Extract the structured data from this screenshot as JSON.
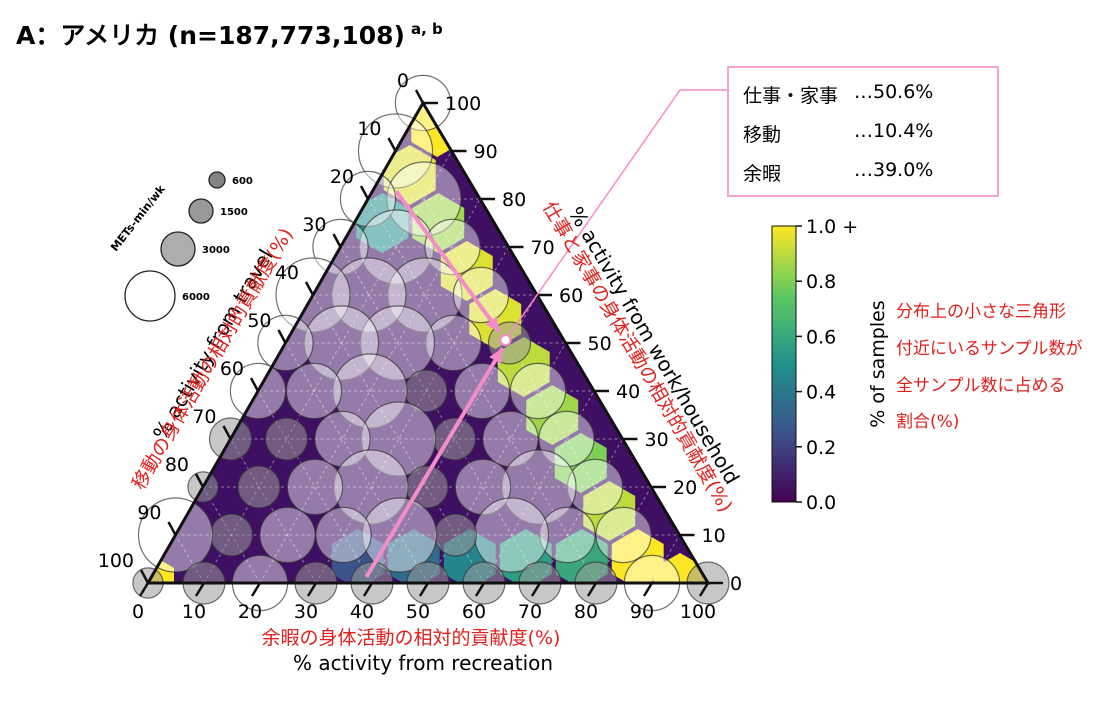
{
  "title": "A：アメリカ (n=187,773,108)",
  "title_superscript": "a, b",
  "callout": {
    "rows": [
      {
        "label": "仕事・家事",
        "value": "…50.6%"
      },
      {
        "label": "移動",
        "value": "…10.4%"
      },
      {
        "label": "余暇",
        "value": "…39.0%"
      }
    ]
  },
  "colorbar": {
    "label": "% of samples",
    "ticks": [
      "0.0",
      "0.2",
      "0.4",
      "0.6",
      "0.8",
      "1.0 +"
    ],
    "annotation_lines": [
      "分布上の小さな三角形",
      "付近にいるサンプル数が",
      "全サンプル数に占める",
      "割合(%)"
    ]
  },
  "size_legend": {
    "title": "METs-min/wk",
    "entries": [
      "600",
      "1500",
      "3000",
      "6000"
    ]
  },
  "colors": {
    "pink": "#f48cc8",
    "red_text": "#e0201c",
    "callout_border": "#f2a3cf"
  },
  "chart_data": {
    "type": "ternary",
    "axes": {
      "bottom": {
        "label": "% activity from recreation",
        "label_ja": "余暇の身体活動の相対的貢献度(%)",
        "ticks": [
          "0",
          "10",
          "20",
          "30",
          "40",
          "50",
          "60",
          "70",
          "80",
          "90",
          "100"
        ]
      },
      "right": {
        "label": "% activity from work/household",
        "label_ja": "仕事と家事の身体活動の相対的貢献度(%)",
        "ticks": [
          "0",
          "10",
          "20",
          "30",
          "40",
          "50",
          "60",
          "70",
          "80",
          "90",
          "100"
        ]
      },
      "left": {
        "label": "% activity from travel",
        "label_ja": "移動の身体活動の相対的貢献度(%)",
        "ticks": [
          "0",
          "10",
          "20",
          "30",
          "40",
          "50",
          "60",
          "70",
          "80",
          "90",
          "100"
        ]
      }
    },
    "mean_point": {
      "work_household": 50.6,
      "travel": 10.4,
      "recreation": 39.0
    },
    "colorscale": {
      "min": 0.0,
      "max": 1.0,
      "colors": [
        "#440154",
        "#3b528b",
        "#21918c",
        "#5ec962",
        "#fde725"
      ]
    },
    "cells": [
      {
        "rec": 5,
        "work": 95,
        "travel": 0,
        "value": 1.0
      },
      {
        "rec": 5,
        "work": 85,
        "travel": 10,
        "value": 0.95
      },
      {
        "rec": 15,
        "work": 75,
        "travel": 10,
        "value": 0.85
      },
      {
        "rec": 5,
        "work": 75,
        "travel": 20,
        "value": 0.5
      },
      {
        "rec": 25,
        "work": 65,
        "travel": 10,
        "value": 0.95
      },
      {
        "rec": 35,
        "work": 55,
        "travel": 10,
        "value": 0.95
      },
      {
        "rec": 45,
        "work": 45,
        "travel": 10,
        "value": 0.9
      },
      {
        "rec": 55,
        "work": 35,
        "travel": 10,
        "value": 0.85
      },
      {
        "rec": 65,
        "work": 25,
        "travel": 10,
        "value": 0.8
      },
      {
        "rec": 75,
        "work": 15,
        "travel": 10,
        "value": 0.9
      },
      {
        "rec": 85,
        "work": 5,
        "travel": 10,
        "value": 1.0
      },
      {
        "rec": 95,
        "work": 0,
        "travel": 5,
        "value": 1.0
      },
      {
        "rec": 0,
        "work": 0,
        "travel": 100,
        "value": 1.0
      },
      {
        "rec": 45,
        "work": 5,
        "travel": 50,
        "value": 0.35
      },
      {
        "rec": 55,
        "work": 5,
        "travel": 40,
        "value": 0.45
      },
      {
        "rec": 65,
        "work": 5,
        "travel": 30,
        "value": 0.55
      },
      {
        "rec": 75,
        "work": 5,
        "travel": 20,
        "value": 0.6
      },
      {
        "rec": 35,
        "work": 5,
        "travel": 60,
        "value": 0.25
      }
    ],
    "bubbles": [
      {
        "x": 0,
        "y": 0,
        "r": 0,
        "rec": 0,
        "work": 100,
        "travel": 0,
        "size": 3000
      },
      {
        "rec": 0,
        "work": 90,
        "travel": 10,
        "size": 6000
      },
      {
        "rec": 10,
        "work": 80,
        "travel": 10,
        "size": 6000
      },
      {
        "rec": 0,
        "work": 80,
        "travel": 20,
        "size": 3000
      },
      {
        "rec": 10,
        "work": 70,
        "travel": 20,
        "size": 6000
      },
      {
        "rec": 20,
        "work": 70,
        "travel": 10,
        "size": 3000
      },
      {
        "rec": 0,
        "work": 70,
        "travel": 30,
        "size": 3000
      },
      {
        "rec": 20,
        "work": 60,
        "travel": 20,
        "size": 6000
      },
      {
        "rec": 30,
        "work": 60,
        "travel": 10,
        "size": 3000
      },
      {
        "rec": 10,
        "work": 60,
        "travel": 30,
        "size": 6000
      },
      {
        "rec": 0,
        "work": 60,
        "travel": 40,
        "size": 6000
      },
      {
        "rec": 40,
        "work": 50,
        "travel": 10,
        "size": 1500
      },
      {
        "rec": 30,
        "work": 50,
        "travel": 20,
        "size": 3000
      },
      {
        "rec": 20,
        "work": 50,
        "travel": 30,
        "size": 6000
      },
      {
        "rec": 10,
        "work": 50,
        "travel": 40,
        "size": 6000
      },
      {
        "rec": 0,
        "work": 50,
        "travel": 50,
        "size": 3000
      },
      {
        "rec": 50,
        "work": 40,
        "travel": 10,
        "size": 3000
      },
      {
        "rec": 40,
        "work": 40,
        "travel": 20,
        "size": 3000
      },
      {
        "rec": 30,
        "work": 40,
        "travel": 30,
        "size": 1500
      },
      {
        "rec": 20,
        "work": 40,
        "travel": 40,
        "size": 6000
      },
      {
        "rec": 10,
        "work": 40,
        "travel": 50,
        "size": 3000
      },
      {
        "rec": 0,
        "work": 40,
        "travel": 60,
        "size": 3000
      },
      {
        "rec": 60,
        "work": 30,
        "travel": 10,
        "size": 3000
      },
      {
        "rec": 50,
        "work": 30,
        "travel": 20,
        "size": 3000
      },
      {
        "rec": 40,
        "work": 30,
        "travel": 30,
        "size": 1500
      },
      {
        "rec": 30,
        "work": 30,
        "travel": 40,
        "size": 6000
      },
      {
        "rec": 20,
        "work": 30,
        "travel": 50,
        "size": 3000
      },
      {
        "rec": 10,
        "work": 30,
        "travel": 60,
        "size": 1500
      },
      {
        "rec": 0,
        "work": 30,
        "travel": 70,
        "size": 1500
      },
      {
        "rec": 70,
        "work": 20,
        "travel": 10,
        "size": 3000
      },
      {
        "rec": 60,
        "work": 20,
        "travel": 20,
        "size": 6000
      },
      {
        "rec": 50,
        "work": 20,
        "travel": 30,
        "size": 3000
      },
      {
        "rec": 40,
        "work": 20,
        "travel": 40,
        "size": 1500
      },
      {
        "rec": 30,
        "work": 20,
        "travel": 50,
        "size": 6000
      },
      {
        "rec": 20,
        "work": 20,
        "travel": 60,
        "size": 3000
      },
      {
        "rec": 10,
        "work": 20,
        "travel": 70,
        "size": 1500
      },
      {
        "rec": 0,
        "work": 20,
        "travel": 80,
        "size": 600
      },
      {
        "rec": 80,
        "work": 10,
        "travel": 10,
        "size": 3000
      },
      {
        "rec": 70,
        "work": 10,
        "travel": 20,
        "size": 3000
      },
      {
        "rec": 60,
        "work": 10,
        "travel": 30,
        "size": 6000
      },
      {
        "rec": 50,
        "work": 10,
        "travel": 40,
        "size": 1500
      },
      {
        "rec": 40,
        "work": 10,
        "travel": 50,
        "size": 6000
      },
      {
        "rec": 30,
        "work": 10,
        "travel": 60,
        "size": 3000
      },
      {
        "rec": 20,
        "work": 10,
        "travel": 70,
        "size": 3000
      },
      {
        "rec": 10,
        "work": 10,
        "travel": 80,
        "size": 1500
      },
      {
        "rec": 0,
        "work": 10,
        "travel": 90,
        "size": 6000
      },
      {
        "rec": 100,
        "work": 0,
        "travel": 0,
        "size": 1500
      },
      {
        "rec": 90,
        "work": 0,
        "travel": 10,
        "size": 3000
      },
      {
        "rec": 80,
        "work": 0,
        "travel": 20,
        "size": 1500
      },
      {
        "rec": 70,
        "work": 0,
        "travel": 30,
        "size": 1500
      },
      {
        "rec": 60,
        "work": 0,
        "travel": 40,
        "size": 1500
      },
      {
        "rec": 50,
        "work": 0,
        "travel": 50,
        "size": 1500
      },
      {
        "rec": 40,
        "work": 0,
        "travel": 60,
        "size": 1500
      },
      {
        "rec": 30,
        "work": 0,
        "travel": 70,
        "size": 1500
      },
      {
        "rec": 20,
        "work": 0,
        "travel": 80,
        "size": 3000
      },
      {
        "rec": 10,
        "work": 0,
        "travel": 90,
        "size": 1500
      },
      {
        "rec": 0,
        "work": 0,
        "travel": 100,
        "size": 600
      }
    ]
  }
}
